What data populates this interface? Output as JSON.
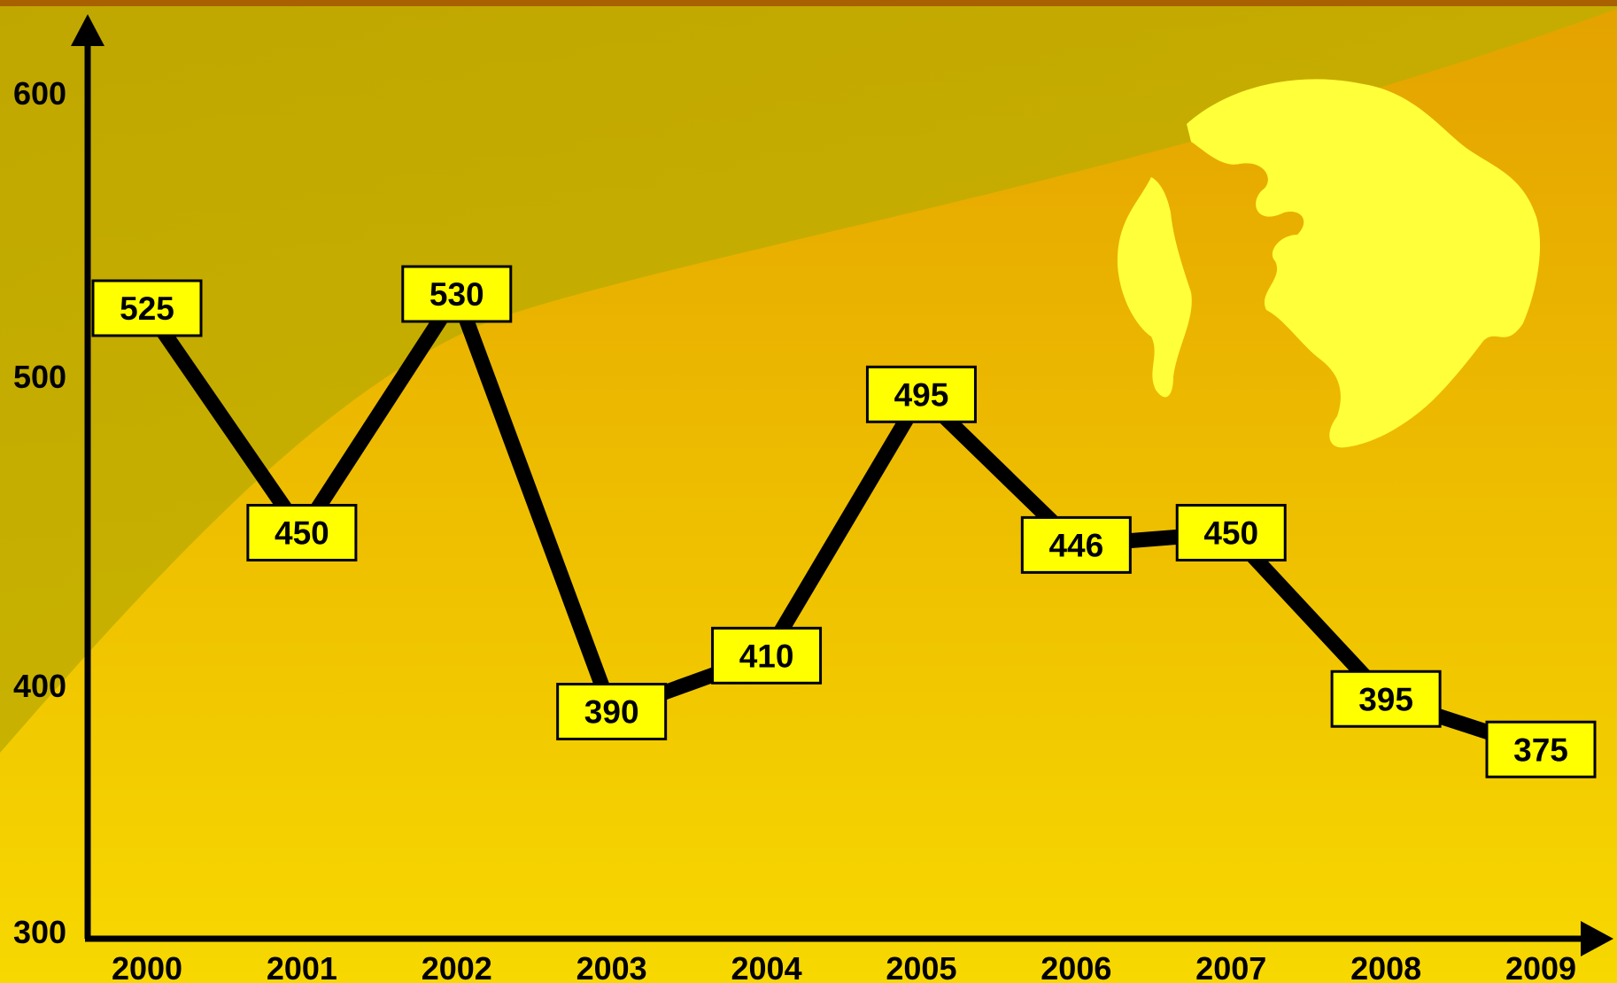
{
  "colors": {
    "background_top": "#c5a300",
    "background_bottom": "#f5d300",
    "band_light": "#e9b400",
    "top_band": "#d5a400",
    "globe": "#ffff33",
    "label_box": "#ffff00",
    "line": "#000000",
    "axis": "#000000"
  },
  "decorations": {
    "globe_icon": "globe-icon"
  },
  "chart_data": {
    "type": "line",
    "title": "",
    "xlabel": "",
    "ylabel": "",
    "categories": [
      "2000",
      "2001",
      "2002",
      "2003",
      "2004",
      "2005",
      "2006",
      "2007",
      "2008",
      "2009"
    ],
    "series": [
      {
        "values": [
          525,
          450,
          530,
          390,
          410,
          495,
          446,
          450,
          395,
          375
        ]
      }
    ],
    "y_ticks": [
      "600",
      "500",
      "400",
      "300"
    ],
    "ylim": [
      300,
      600
    ],
    "grid": false,
    "legend": "none",
    "data_labels": true
  }
}
